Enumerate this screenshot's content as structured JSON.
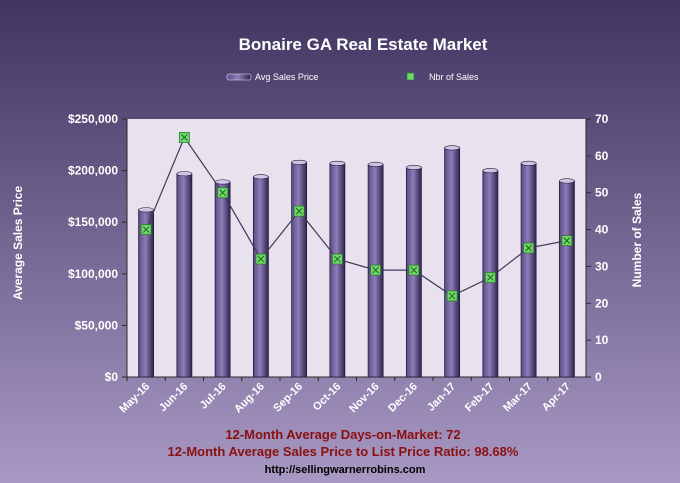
{
  "title": "Bonaire GA Real Estate Market",
  "footer": {
    "line1": "12-Month Average Days-on-Market: 72",
    "line2": "12-Month Average Sales Price to List Price Ratio: 98.68%",
    "url": "http://sellingwarnerrobins.com"
  },
  "colors": {
    "background_top": "#3f3560",
    "background_bottom": "#a898c4",
    "plot_background": "#e8e2ef",
    "bar_fill": "#5c4a8a",
    "bar_highlight": "#8e7db6",
    "line": "#3c3c5a",
    "marker": "#6ed86a",
    "footer_text": "#8b1010",
    "text": "#ffffff"
  },
  "chart_data": {
    "type": "bar",
    "title": "Bonaire GA Real Estate Market",
    "categories": [
      "May-16",
      "Jun-16",
      "Jul-16",
      "Aug-16",
      "Sep-16",
      "Oct-16",
      "Nov-16",
      "Dec-16",
      "Jan-17",
      "Feb-17",
      "Mar-17",
      "Apr-17"
    ],
    "series": [
      {
        "name": "Avg Sales Price",
        "type": "bar",
        "axis": "left",
        "values": [
          162000,
          197000,
          189000,
          194000,
          208000,
          207000,
          206000,
          203000,
          222000,
          200000,
          207000,
          190000
        ]
      },
      {
        "name": "Nbr of Sales",
        "type": "line",
        "axis": "right",
        "values": [
          40,
          65,
          50,
          32,
          45,
          32,
          29,
          29,
          22,
          27,
          35,
          37
        ]
      }
    ],
    "y_left": {
      "label": "Average Sales Price",
      "range": [
        0,
        250000
      ],
      "ticks": [
        "$0",
        "$50,000",
        "$100,000",
        "$150,000",
        "$200,000",
        "$250,000"
      ]
    },
    "y_right": {
      "label": "Number of Sales",
      "range": [
        0,
        70
      ],
      "ticks": [
        "0",
        "10",
        "20",
        "30",
        "40",
        "50",
        "60",
        "70"
      ]
    },
    "legend_position": "top-center",
    "grid": false
  }
}
